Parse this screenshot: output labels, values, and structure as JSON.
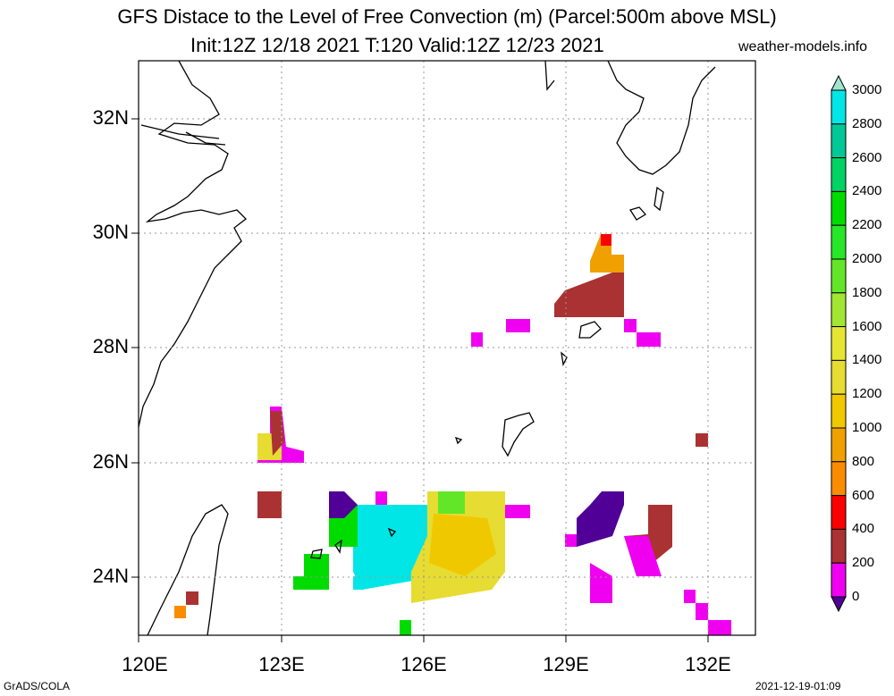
{
  "title": {
    "line1": "GFS Distace to the Level of Free Convection (m) (Parcel:500m above MSL)",
    "line2": "Init:12Z 12/18 2021 T:120 Valid:12Z 12/23 2021",
    "site": "weather-models.info"
  },
  "footer": {
    "left": "GrADS/COLA",
    "right": "2021-12-19-01:09"
  },
  "axes": {
    "lat_labels": [
      "32N",
      "30N",
      "28N",
      "26N",
      "24N"
    ],
    "lon_labels": [
      "120E",
      "123E",
      "126E",
      "129E",
      "132E"
    ],
    "lon_range": [
      120,
      133
    ],
    "lat_range": [
      23,
      33
    ],
    "grid": true
  },
  "colorbar": {
    "labels": [
      "3000",
      "2800",
      "2600",
      "2400",
      "2200",
      "2000",
      "1800",
      "1600",
      "1400",
      "1200",
      "1000",
      "800",
      "600",
      "400",
      "200",
      "0"
    ],
    "colors": [
      "#9ee6d0",
      "#00e6e6",
      "#00c896",
      "#00d264",
      "#00dc00",
      "#28e628",
      "#64e628",
      "#a0e632",
      "#e6e632",
      "#e6dc32",
      "#f0c800",
      "#f0a000",
      "#fa8c00",
      "#fa0000",
      "#aa3232",
      "#f000f0",
      "#500096"
    ]
  },
  "field": {
    "colors": {
      "0": "#500096",
      "200": "#f000f0",
      "400": "#aa3232",
      "600": "#fa0000",
      "800": "#fa8c00",
      "1000": "#f0a000",
      "1200": "#f0c800",
      "1400": "#e6dc32",
      "1600": "#e6e632",
      "1800": "#a0e632",
      "2000": "#64e628",
      "2200": "#28e628",
      "2400": "#00dc00",
      "2600": "#00d264",
      "2800": "#00c896",
      "3000": "#00e6e6"
    }
  }
}
